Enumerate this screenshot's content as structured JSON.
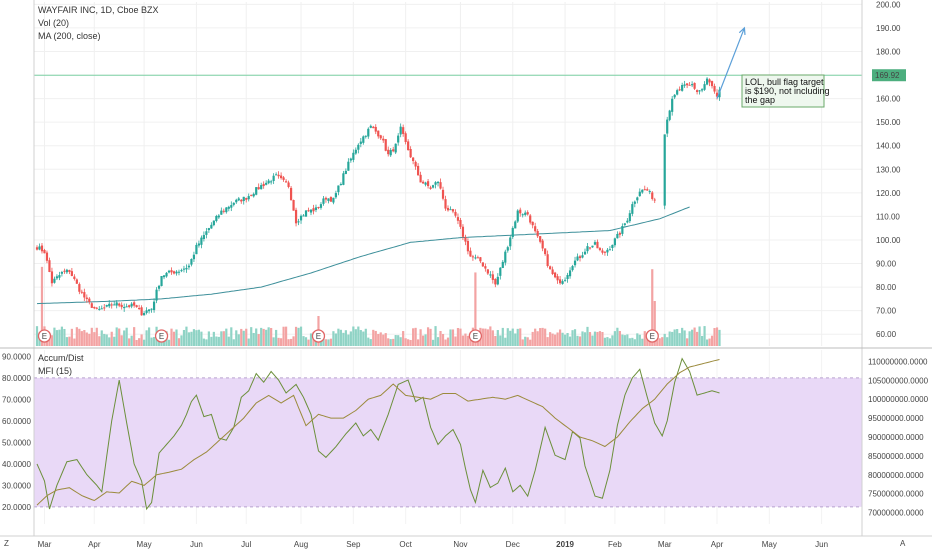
{
  "header": {
    "symbol_line": "WAYFAIR INC, 1D, Cboe BZX",
    "vol_line": "Vol (20)",
    "ma_line": "MA (200, close)",
    "accum_line": "Accum/Dist",
    "mfi_line": "MFI (15)"
  },
  "note": {
    "lines": [
      "LOL, bull flag target",
      "is $190, not including",
      "the gap"
    ]
  },
  "corner": {
    "left": "Z",
    "right": "A"
  },
  "colors": {
    "up": "#26a69a",
    "down": "#ef5350",
    "up_vol": "#8fd3c5",
    "down_vol": "#f3a3a3",
    "ma": "#3d8f9a",
    "hline": "#7ccfa3",
    "price_tag": "#4cae7e",
    "mfi": "#6b8f3a",
    "accum": "#9b8a3c",
    "band": "#e9d9f7",
    "arrow": "#5b9fd8"
  },
  "chart_data": [
    {
      "type": "candlestick",
      "title": "WAYFAIR INC, 1D, Cboe BZX",
      "x_ticks": [
        "Mar",
        "Apr",
        "May",
        "Jun",
        "Jul",
        "Aug",
        "Sep",
        "Oct",
        "Nov",
        "Dec",
        "2019",
        "Feb",
        "Mar",
        "Apr",
        "May",
        "Jun"
      ],
      "x_tick_index": [
        3,
        23,
        43,
        64,
        84,
        106,
        127,
        148,
        170,
        191,
        212,
        232,
        252,
        273,
        294,
        315
      ],
      "y_ticks": [
        "200.00",
        "190.00",
        "180.00",
        "170.00",
        "160.00",
        "150.00",
        "140.00",
        "130.00",
        "120.00",
        "110.00",
        "100.00",
        "90.00",
        "80.00",
        "70.00",
        "60.00"
      ],
      "ylim": [
        55,
        201
      ],
      "price_line": 169.92,
      "price_label": "169.92",
      "earnings_marker": "E",
      "earnings_index": [
        3,
        50,
        113,
        176,
        247
      ],
      "close_anchors": [
        [
          0,
          97
        ],
        [
          3,
          95
        ],
        [
          6,
          82
        ],
        [
          10,
          86
        ],
        [
          13,
          87
        ],
        [
          17,
          79
        ],
        [
          20,
          74
        ],
        [
          24,
          70
        ],
        [
          27,
          71
        ],
        [
          31,
          73
        ],
        [
          35,
          72
        ],
        [
          39,
          72
        ],
        [
          42,
          69
        ],
        [
          46,
          71
        ],
        [
          50,
          85
        ],
        [
          53,
          86
        ],
        [
          57,
          87
        ],
        [
          61,
          89
        ],
        [
          64,
          97
        ],
        [
          69,
          105
        ],
        [
          74,
          112
        ],
        [
          79,
          116
        ],
        [
          84,
          118
        ],
        [
          90,
          123
        ],
        [
          96,
          127
        ],
        [
          101,
          123
        ],
        [
          104,
          108
        ],
        [
          108,
          112
        ],
        [
          112,
          113
        ],
        [
          116,
          118
        ],
        [
          119,
          117
        ],
        [
          124,
          130
        ],
        [
          129,
          141
        ],
        [
          134,
          148
        ],
        [
          138,
          144
        ],
        [
          141,
          136
        ],
        [
          144,
          140
        ],
        [
          146,
          147
        ],
        [
          148,
          141
        ],
        [
          151,
          133
        ],
        [
          154,
          125
        ],
        [
          158,
          122
        ],
        [
          161,
          125
        ],
        [
          164,
          114
        ],
        [
          168,
          110
        ],
        [
          171,
          102
        ],
        [
          174,
          93
        ],
        [
          178,
          91
        ],
        [
          182,
          85
        ],
        [
          184,
          81
        ],
        [
          187,
          91
        ],
        [
          191,
          105
        ],
        [
          193,
          112
        ],
        [
          197,
          111
        ],
        [
          200,
          103
        ],
        [
          203,
          96
        ],
        [
          206,
          87
        ],
        [
          209,
          82
        ],
        [
          212,
          84
        ],
        [
          215,
          90
        ],
        [
          218,
          93
        ],
        [
          221,
          97
        ],
        [
          224,
          98
        ],
        [
          227,
          94
        ],
        [
          230,
          97
        ],
        [
          234,
          103
        ],
        [
          237,
          109
        ],
        [
          239,
          115
        ],
        [
          242,
          121
        ],
        [
          245,
          121
        ],
        [
          248,
          117
        ],
        [
          251,
          116
        ],
        [
          252,
          145
        ],
        [
          253,
          152
        ],
        [
          255,
          159
        ],
        [
          257,
          163
        ],
        [
          259,
          165
        ],
        [
          261,
          165
        ],
        [
          263,
          166
        ],
        [
          265,
          163
        ],
        [
          267,
          164
        ],
        [
          269,
          168
        ],
        [
          271,
          165
        ],
        [
          273,
          160
        ],
        [
          274,
          163
        ]
      ],
      "window": {
        "gap_start": 249,
        "gap_end": 251
      },
      "volume": {
        "label": "Vol (20)"
      },
      "ma": {
        "label": "MA (200, close)",
        "anchors": [
          [
            0,
            73
          ],
          [
            30,
            74
          ],
          [
            50,
            75
          ],
          [
            70,
            77
          ],
          [
            90,
            80
          ],
          [
            110,
            86
          ],
          [
            130,
            93
          ],
          [
            150,
            99
          ],
          [
            170,
            101
          ],
          [
            190,
            102
          ],
          [
            210,
            103
          ],
          [
            230,
            104
          ],
          [
            250,
            109
          ],
          [
            262,
            114
          ]
        ]
      },
      "projection": {
        "from_price": 160,
        "to_price": 190
      }
    },
    {
      "type": "line",
      "series": [
        {
          "name": "MFI (15)",
          "axis": "left",
          "anchors": [
            [
              0,
              40
            ],
            [
              3,
              32
            ],
            [
              5,
              19
            ],
            [
              8,
              30
            ],
            [
              12,
              41
            ],
            [
              16,
              42
            ],
            [
              20,
              35
            ],
            [
              24,
              30
            ],
            [
              26,
              27
            ],
            [
              30,
              60
            ],
            [
              33,
              79
            ],
            [
              36,
              59
            ],
            [
              39,
              40
            ],
            [
              42,
              32
            ],
            [
              44,
              19
            ],
            [
              46,
              22
            ],
            [
              49,
              45
            ],
            [
              52,
              49
            ],
            [
              55,
              53
            ],
            [
              58,
              58
            ],
            [
              60,
              63
            ],
            [
              62,
              69
            ],
            [
              64,
              72
            ],
            [
              67,
              62
            ],
            [
              70,
              63
            ],
            [
              73,
              52
            ],
            [
              76,
              51
            ],
            [
              79,
              57
            ],
            [
              82,
              71
            ],
            [
              85,
              74
            ],
            [
              88,
              82
            ],
            [
              91,
              78
            ],
            [
              94,
              83
            ],
            [
              97,
              79
            ],
            [
              100,
              73
            ],
            [
              104,
              77
            ],
            [
              107,
              71
            ],
            [
              110,
              63
            ],
            [
              113,
              46
            ],
            [
              116,
              43
            ],
            [
              120,
              48
            ],
            [
              124,
              54
            ],
            [
              128,
              59
            ],
            [
              131,
              53
            ],
            [
              134,
              56
            ],
            [
              137,
              51
            ],
            [
              141,
              63
            ],
            [
              145,
              77
            ],
            [
              149,
              79
            ],
            [
              152,
              69
            ],
            [
              155,
              71
            ],
            [
              158,
              57
            ],
            [
              161,
              49
            ],
            [
              164,
              53
            ],
            [
              167,
              56
            ],
            [
              170,
              49
            ],
            [
              172,
              38
            ],
            [
              174,
              28
            ],
            [
              176,
              22
            ],
            [
              179,
              37
            ],
            [
              182,
              29
            ],
            [
              185,
              31
            ],
            [
              188,
              38
            ],
            [
              191,
              27
            ],
            [
              194,
              30
            ],
            [
              197,
              25
            ],
            [
              200,
              37
            ],
            [
              204,
              57
            ],
            [
              208,
              44
            ],
            [
              212,
              42
            ],
            [
              215,
              55
            ],
            [
              218,
              52
            ],
            [
              220,
              39
            ],
            [
              222,
              32
            ],
            [
              224,
              25
            ],
            [
              227,
              24
            ],
            [
              230,
              37
            ],
            [
              233,
              58
            ],
            [
              236,
              72
            ],
            [
              239,
              80
            ],
            [
              242,
              84
            ],
            [
              245,
              71
            ],
            [
              248,
              59
            ],
            [
              251,
              53
            ],
            [
              253,
              60
            ],
            [
              256,
              78
            ],
            [
              259,
              89
            ],
            [
              262,
              83
            ],
            [
              265,
              72
            ],
            [
              268,
              73
            ],
            [
              271,
              74
            ],
            [
              274,
              73
            ]
          ]
        },
        {
          "name": "Accum/Dist",
          "axis": "right",
          "anchors": [
            [
              0,
              72.0
            ],
            [
              4,
              74.5
            ],
            [
              8,
              76.0
            ],
            [
              13,
              76.6
            ],
            [
              18,
              74.5
            ],
            [
              23,
              73.2
            ],
            [
              28,
              75.5
            ],
            [
              33,
              75.2
            ],
            [
              38,
              78.3
            ],
            [
              43,
              77.2
            ],
            [
              48,
              80.0
            ],
            [
              53,
              80.7
            ],
            [
              58,
              81.5
            ],
            [
              63,
              84.0
            ],
            [
              68,
              86.0
            ],
            [
              73,
              89.0
            ],
            [
              78,
              92.0
            ],
            [
              83,
              95.0
            ],
            [
              88,
              99.0
            ],
            [
              93,
              101.0
            ],
            [
              98,
              99.0
            ],
            [
              103,
              101.0
            ],
            [
              108,
              93.0
            ],
            [
              113,
              96.0
            ],
            [
              118,
              95.0
            ],
            [
              123,
              95.0
            ],
            [
              128,
              97.0
            ],
            [
              133,
              100.0
            ],
            [
              138,
              101.0
            ],
            [
              143,
              104.0
            ],
            [
              148,
              101.0
            ],
            [
              153,
              100.5
            ],
            [
              158,
              100.0
            ],
            [
              163,
              101.5
            ],
            [
              168,
              101.5
            ],
            [
              173,
              99.5
            ],
            [
              178,
              100.0
            ],
            [
              183,
              100.5
            ],
            [
              188,
              100.0
            ],
            [
              193,
              101.0
            ],
            [
              198,
              99.5
            ],
            [
              203,
              98.0
            ],
            [
              208,
              95.0
            ],
            [
              213,
              92.5
            ],
            [
              218,
              90.0
            ],
            [
              223,
              89.0
            ],
            [
              228,
              87.5
            ],
            [
              233,
              90.0
            ],
            [
              238,
              94.0
            ],
            [
              243,
              97.5
            ],
            [
              248,
              100.0
            ],
            [
              253,
              104.0
            ],
            [
              258,
              107.0
            ],
            [
              262,
              108.5
            ],
            [
              268,
              109.5
            ],
            [
              274,
              110.5
            ]
          ]
        }
      ],
      "y_ticks_left": [
        "90.0000",
        "80.0000",
        "70.0000",
        "60.0000",
        "50.0000",
        "40.0000",
        "30.0000",
        "20.0000"
      ],
      "ylim_left": [
        12,
        93
      ],
      "y_ticks_right": [
        "110000000.0000",
        "105000000.0000",
        "100000000.0000",
        "95000000.0000",
        "90000000.0000",
        "85000000.0000",
        "80000000.0000",
        "75000000.0000",
        "70000000.0000"
      ],
      "ylim_right_millions": [
        67,
        113
      ],
      "band": [
        20,
        80
      ]
    }
  ]
}
